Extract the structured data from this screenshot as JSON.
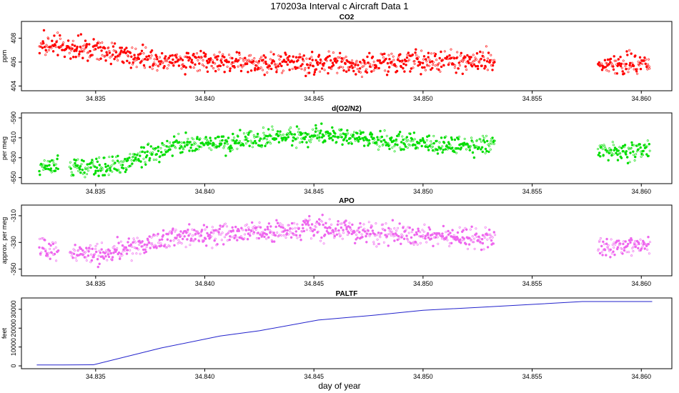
{
  "figure": {
    "title": "170203a   Interval c Aircraft Data 1",
    "xlabel": "day of year"
  },
  "chart_data": [
    {
      "type": "scatter",
      "title": "CO2",
      "ylabel": "ppm",
      "color": "#ff0000",
      "xlim": [
        34.8316,
        34.8614
      ],
      "ylim": [
        403.6,
        409.4
      ],
      "xticks": [
        "34.835",
        "34.840",
        "34.845",
        "34.850",
        "34.855",
        "34.860"
      ],
      "yticks": [
        "404",
        "406",
        "408"
      ],
      "x_range": [
        34.8324,
        34.8604
      ],
      "gap": [
        34.8533,
        34.858
      ],
      "trend": [
        [
          34.8324,
          407.5
        ],
        [
          34.8336,
          407.2
        ],
        [
          34.8348,
          407.0
        ],
        [
          34.8364,
          406.6
        ],
        [
          34.838,
          406.2
        ],
        [
          34.8396,
          406.1
        ],
        [
          34.841,
          406.0
        ],
        [
          34.843,
          405.9
        ],
        [
          34.845,
          405.9
        ],
        [
          34.847,
          405.8
        ],
        [
          34.849,
          405.9
        ],
        [
          34.8505,
          406.0
        ],
        [
          34.852,
          406.1
        ],
        [
          34.8533,
          406.1
        ],
        [
          34.858,
          405.7
        ],
        [
          34.8592,
          405.7
        ],
        [
          34.8604,
          406.0
        ]
      ],
      "noise": 0.7
    },
    {
      "type": "scatter",
      "title": "d(O2/N2)",
      "ylabel": "per meg",
      "color": "#00dd00",
      "xlim": [
        34.8316,
        34.8614
      ],
      "ylim": [
        -656,
        -585
      ],
      "xticks": [
        "34.835",
        "34.840",
        "34.845",
        "34.850",
        "34.855",
        "34.860"
      ],
      "yticks": [
        "-590",
        "-610",
        "-630",
        "-650"
      ],
      "x_range": [
        34.8324,
        34.8604
      ],
      "gaps": [
        [
          34.8333,
          34.8338
        ],
        [
          34.8533,
          34.858
        ]
      ],
      "trend": [
        [
          34.8324,
          -640
        ],
        [
          34.8333,
          -637
        ],
        [
          34.8338,
          -640
        ],
        [
          34.8352,
          -640
        ],
        [
          34.8364,
          -635
        ],
        [
          34.8375,
          -626
        ],
        [
          34.839,
          -616
        ],
        [
          34.841,
          -615
        ],
        [
          34.843,
          -610
        ],
        [
          34.845,
          -607
        ],
        [
          34.8465,
          -608
        ],
        [
          34.848,
          -612
        ],
        [
          34.85,
          -616
        ],
        [
          34.852,
          -618
        ],
        [
          34.8533,
          -616
        ],
        [
          34.858,
          -624
        ],
        [
          34.8604,
          -622
        ]
      ],
      "noise": 7
    },
    {
      "type": "scatter",
      "title": "APO",
      "ylabel": "approx. per meg",
      "color": "#ee66ee",
      "xlim": [
        34.8316,
        34.8614
      ],
      "ylim": [
        -355,
        -302
      ],
      "xticks": [
        "34.835",
        "34.840",
        "34.845",
        "34.850",
        "34.855",
        "34.860"
      ],
      "yticks": [
        "-310",
        "-330",
        "-350"
      ],
      "x_range": [
        34.8324,
        34.8604
      ],
      "gaps": [
        [
          34.8333,
          34.8338
        ],
        [
          34.8533,
          34.858
        ]
      ],
      "trend": [
        [
          34.8324,
          -337
        ],
        [
          34.8333,
          -335
        ],
        [
          34.8338,
          -338
        ],
        [
          34.8352,
          -339
        ],
        [
          34.8364,
          -335
        ],
        [
          34.8375,
          -331
        ],
        [
          34.839,
          -325
        ],
        [
          34.841,
          -324
        ],
        [
          34.843,
          -322
        ],
        [
          34.845,
          -320
        ],
        [
          34.8465,
          -321
        ],
        [
          34.848,
          -323
        ],
        [
          34.85,
          -325
        ],
        [
          34.852,
          -327
        ],
        [
          34.8533,
          -326
        ],
        [
          34.858,
          -333
        ],
        [
          34.8604,
          -332
        ]
      ],
      "noise": 6
    },
    {
      "type": "line",
      "title": "PALTF",
      "ylabel": "feet",
      "color": "#2222cc",
      "xlim": [
        34.8316,
        34.8614
      ],
      "ylim": [
        -1500,
        36000
      ],
      "xticks": [
        "34.835",
        "34.840",
        "34.845",
        "34.850",
        "34.855",
        "34.860"
      ],
      "yticks": [
        "0",
        "10000",
        "20000",
        "30000"
      ],
      "x": [
        34.8323,
        34.8335,
        34.8349,
        34.838,
        34.8407,
        34.8425,
        34.8452,
        34.8478,
        34.85,
        34.8525,
        34.855,
        34.8573,
        34.8605
      ],
      "values": [
        500,
        500,
        600,
        9500,
        15800,
        18600,
        24300,
        26900,
        29500,
        31000,
        32600,
        34100,
        34100
      ]
    }
  ]
}
